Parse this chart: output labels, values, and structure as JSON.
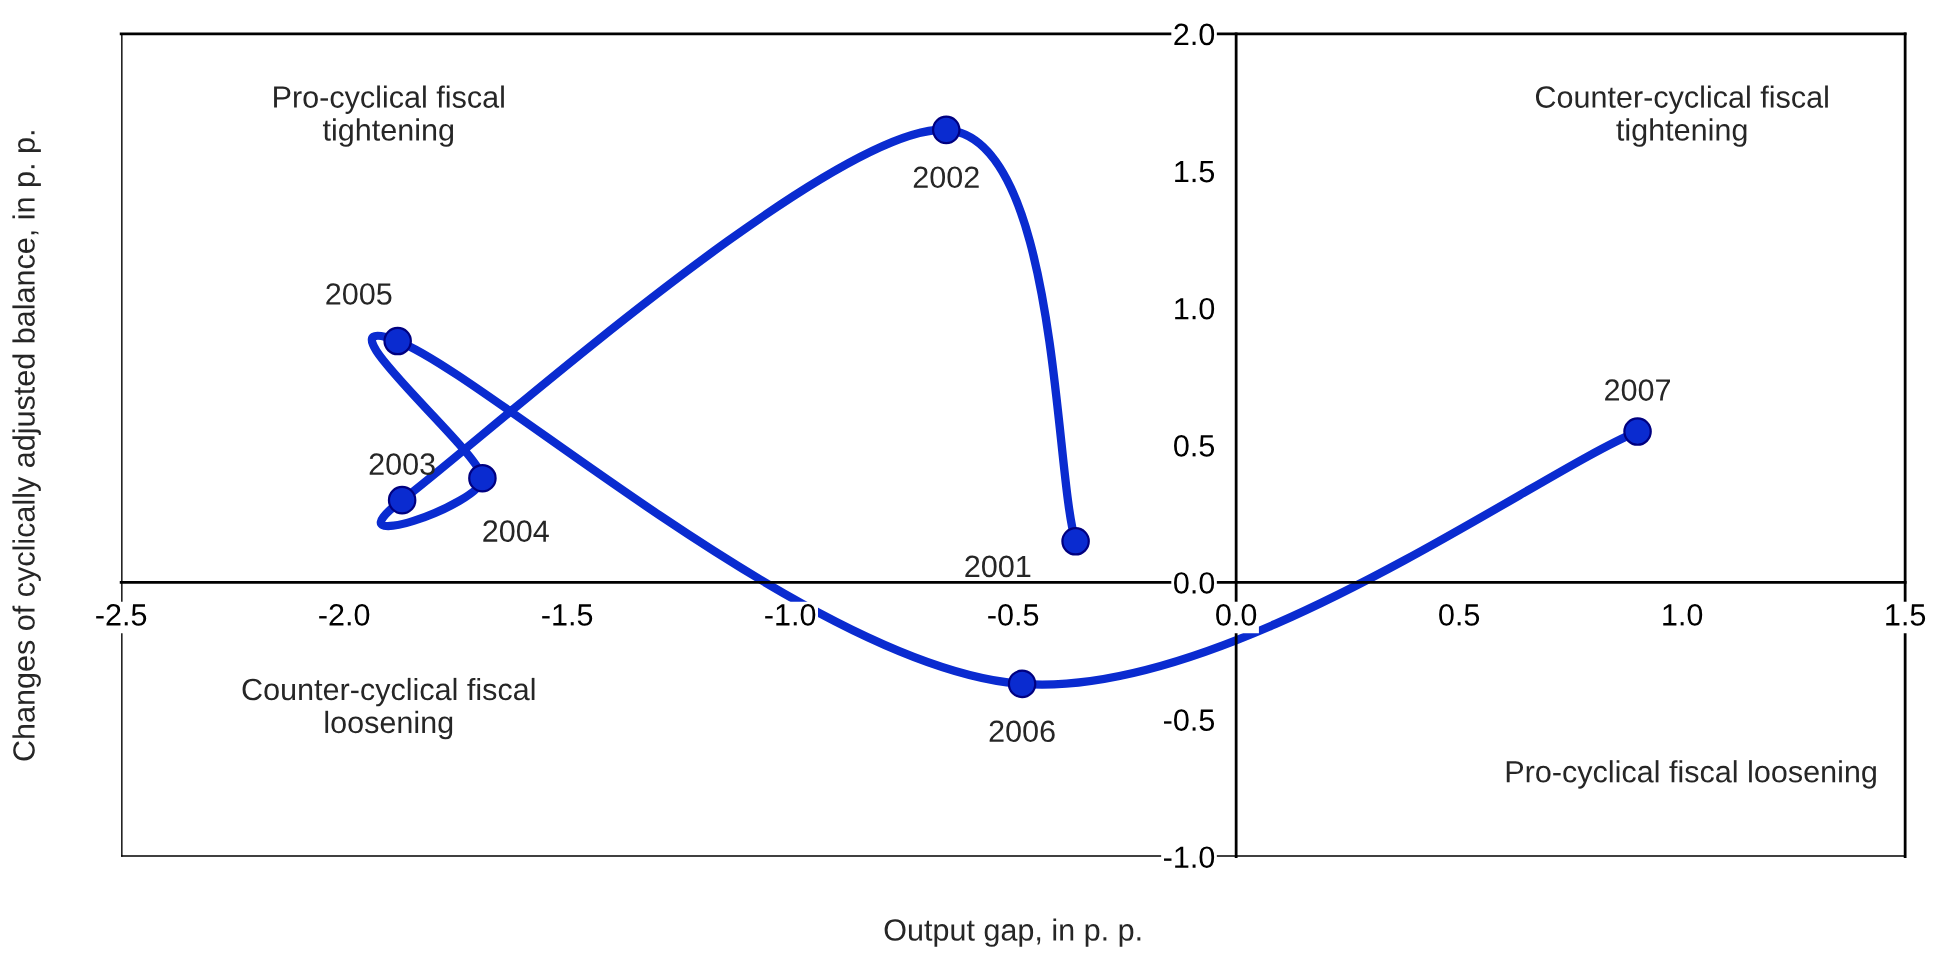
{
  "chart_data": {
    "type": "line",
    "xlabel": "Output gap, in p. p.",
    "ylabel": "Changes of cyclically adjusted balance, in p. p.",
    "x": [
      -0.36,
      -0.65,
      -1.87,
      -1.69,
      -1.88,
      -0.48,
      0.9
    ],
    "series": [
      {
        "color": "#0a2bd0",
        "values": [
          0.15,
          1.65,
          0.3,
          0.38,
          0.88,
          -0.37,
          0.55
        ]
      }
    ],
    "marker": "circle",
    "line_style": "solid",
    "grid": false,
    "legend": false,
    "xlim": [
      -2.5,
      1.5
    ],
    "xticks": [
      {
        "value": -2.5,
        "label": "-2.5"
      },
      {
        "value": -2.0,
        "label": "-2.0"
      },
      {
        "value": -1.5,
        "label": "-1.5"
      },
      {
        "value": -1.0,
        "label": "-1.0"
      },
      {
        "value": -0.5,
        "label": "-0.5"
      },
      {
        "value": 0.0,
        "label": "0.0"
      },
      {
        "value": 0.5,
        "label": "0.5"
      },
      {
        "value": 1.0,
        "label": "1.0"
      },
      {
        "value": 1.5,
        "label": "1.5"
      }
    ],
    "ylim": [
      -1.0,
      2.0
    ],
    "yticks": [
      {
        "value": -1.0,
        "label": "-1.0"
      },
      {
        "value": -0.5,
        "label": "-0.5"
      },
      {
        "value": 0.0,
        "label": "0.0"
      },
      {
        "value": 0.5,
        "label": "0.5"
      },
      {
        "value": 1.0,
        "label": "1.0"
      },
      {
        "value": 1.5,
        "label": "1.5"
      },
      {
        "value": 2.0,
        "label": "2.0"
      }
    ],
    "annotations": [
      {
        "text": "2001",
        "x": -0.36,
        "y": 0.15
      },
      {
        "text": "2002",
        "x": -0.65,
        "y": 1.65
      },
      {
        "text": "2003",
        "x": -1.87,
        "y": 0.3
      },
      {
        "text": "2004",
        "x": -1.69,
        "y": 0.38
      },
      {
        "text": "2005",
        "x": -1.88,
        "y": 0.88
      },
      {
        "text": "2006",
        "x": -0.48,
        "y": -0.37
      },
      {
        "text": "2007",
        "x": 0.9,
        "y": 0.55
      },
      "Pro-cyclical fiscal\ntightening",
      "Counter-cyclical fiscal\ntightening",
      "Counter-cyclical fiscal\nloosening",
      "Pro-cyclical fiscal loosening"
    ]
  }
}
